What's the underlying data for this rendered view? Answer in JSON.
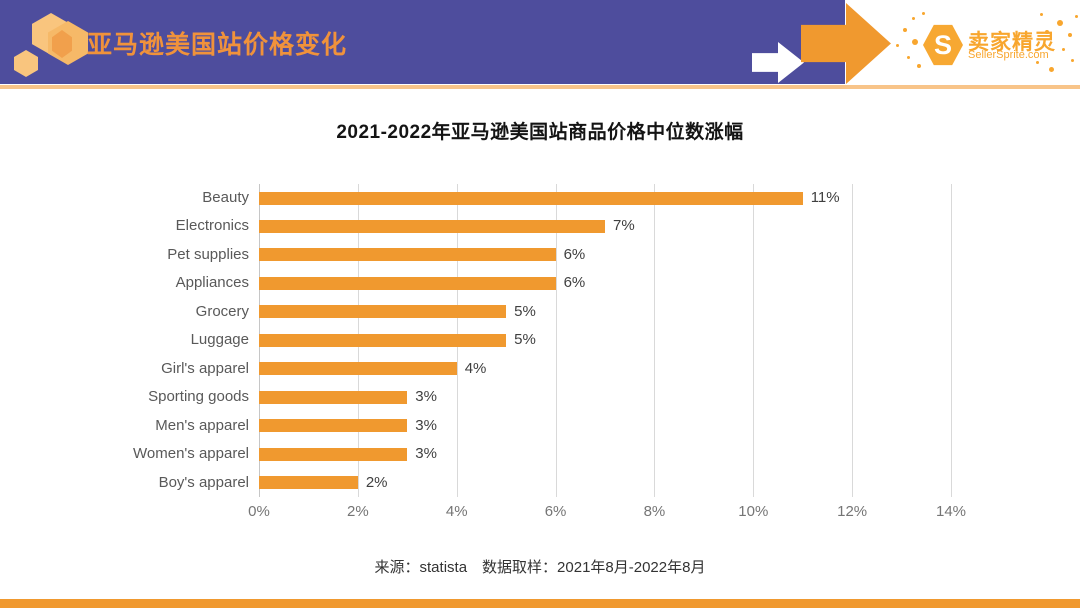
{
  "header": {
    "title": "亚马逊美国站价格变化",
    "brand": {
      "monogram": "S",
      "name": "卖家精灵",
      "domain": "SellerSprite.com"
    }
  },
  "chart_data": {
    "type": "bar",
    "orientation": "horizontal",
    "title": "2021-2022年亚马逊美国站商品价格中位数涨幅",
    "categories": [
      "Beauty",
      "Electronics",
      "Pet supplies",
      "Appliances",
      "Grocery",
      "Luggage",
      "Girl's apparel",
      "Sporting goods",
      "Men's apparel",
      "Women's apparel",
      "Boy's apparel"
    ],
    "values": [
      11,
      7,
      6,
      6,
      5,
      5,
      4,
      3,
      3,
      3,
      2
    ],
    "value_labels": [
      "11%",
      "7%",
      "6%",
      "6%",
      "5%",
      "5%",
      "4%",
      "3%",
      "3%",
      "3%",
      "2%"
    ],
    "x_ticks": [
      "0%",
      "2%",
      "4%",
      "6%",
      "8%",
      "10%",
      "12%",
      "14%"
    ],
    "xlim": [
      0,
      14
    ],
    "xlabel": "",
    "ylabel": "",
    "grid": true,
    "legend": false,
    "bar_color": "#F0992F"
  },
  "footer": {
    "text": "来源：statista　数据取样：2021年8月-2022年8月"
  },
  "colors": {
    "header_purple": "#4E4D9D",
    "accent_orange": "#F0992F",
    "underline_peach": "#F8C489",
    "brand_orange": "#F8A62E",
    "grid_gray": "#D9D9D9"
  }
}
